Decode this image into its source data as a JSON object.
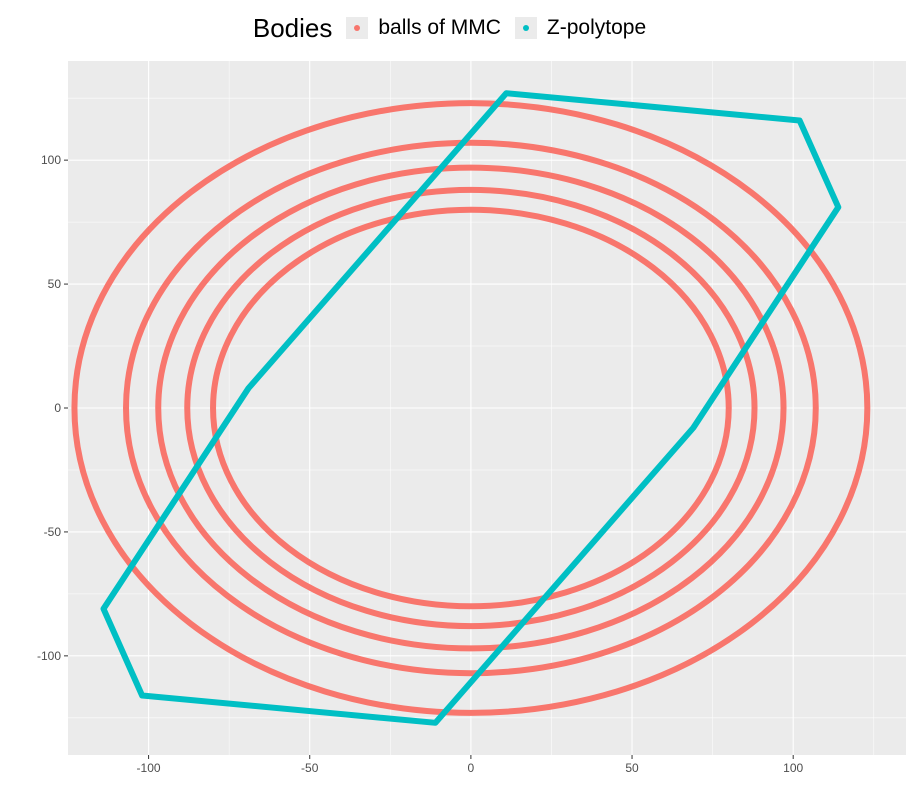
{
  "chart_data": {
    "type": "line",
    "title": "",
    "xlabel": "",
    "ylabel": "",
    "xlim": [
      -125,
      135
    ],
    "ylim": [
      -140,
      140
    ],
    "x_ticks": [
      -100,
      -50,
      0,
      50,
      100
    ],
    "y_ticks": [
      -100,
      -50,
      0,
      50,
      100
    ],
    "x_tick_labels": [
      "-100",
      "-50",
      "0",
      "50",
      "100"
    ],
    "y_tick_labels": [
      "-100",
      "-50",
      "0",
      "50",
      "100"
    ],
    "grid": true,
    "legend": {
      "title": "Bodies",
      "placement": "top",
      "entries": [
        "balls of MMC",
        "Z-polytope"
      ]
    },
    "colors": {
      "balls": "#f8766d",
      "polytope": "#00bfc4",
      "panel": "#ebebeb",
      "grid": "#ffffff"
    },
    "series": [
      {
        "name": "balls of MMC",
        "shape": "ellipses",
        "center": [
          0,
          0
        ],
        "ellipses": [
          {
            "rx": 123,
            "ry": 123
          },
          {
            "rx": 107,
            "ry": 107
          },
          {
            "rx": 97,
            "ry": 97
          },
          {
            "rx": 88,
            "ry": 88
          },
          {
            "rx": 80,
            "ry": 80
          }
        ]
      },
      {
        "name": "Z-polytope",
        "shape": "polygon",
        "points": [
          [
            11,
            127
          ],
          [
            102,
            116
          ],
          [
            114,
            81
          ],
          [
            69,
            -8
          ],
          [
            -11,
            -127
          ],
          [
            -102,
            -116
          ],
          [
            -114,
            -81
          ],
          [
            -69,
            8
          ]
        ]
      }
    ]
  }
}
